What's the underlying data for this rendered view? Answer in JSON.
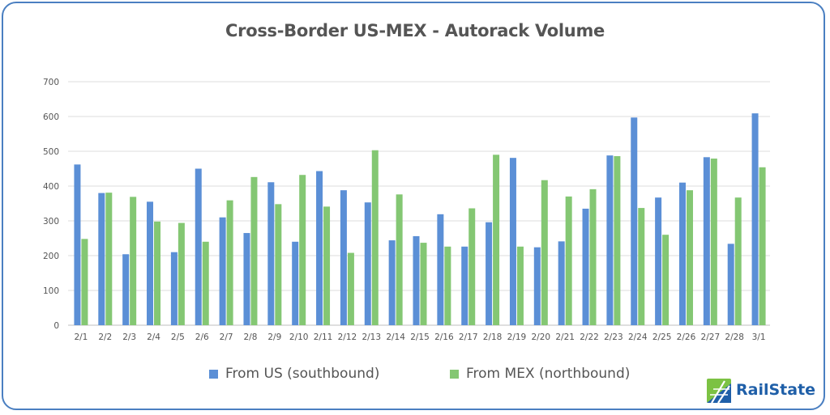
{
  "chart_data": {
    "type": "bar",
    "title": "Cross-Border US-MEX - Autorack Volume",
    "xlabel": "",
    "ylabel": "",
    "ylim": [
      0,
      700
    ],
    "yticks": [
      0,
      100,
      200,
      300,
      400,
      500,
      600,
      700
    ],
    "grid": true,
    "legend_position": "bottom",
    "categories": [
      "2/1",
      "2/2",
      "2/3",
      "2/4",
      "2/5",
      "2/6",
      "2/7",
      "2/8",
      "2/9",
      "2/10",
      "2/11",
      "2/12",
      "2/13",
      "2/14",
      "2/15",
      "2/16",
      "2/17",
      "2/18",
      "2/19",
      "2/20",
      "2/21",
      "2/22",
      "2/23",
      "2/24",
      "2/25",
      "2/26",
      "2/27",
      "2/28",
      "3/1"
    ],
    "series": [
      {
        "name": "From US (southbound)",
        "color": "#5b8fd6",
        "values": [
          462,
          380,
          204,
          355,
          210,
          450,
          310,
          265,
          411,
          240,
          443,
          388,
          353,
          244,
          256,
          319,
          226,
          296,
          481,
          224,
          241,
          335,
          488,
          597,
          367,
          410,
          483,
          234,
          609
        ]
      },
      {
        "name": "From MEX (northbound)",
        "color": "#84c773",
        "values": [
          248,
          381,
          369,
          298,
          294,
          240,
          359,
          426,
          348,
          432,
          341,
          208,
          503,
          376,
          237,
          226,
          336,
          490,
          226,
          417,
          370,
          391,
          486,
          337,
          260,
          388,
          479,
          367,
          454
        ]
      }
    ]
  },
  "logo": {
    "text": "RailState",
    "mark_colors": [
      "#7cc243",
      "#1f5fa8"
    ]
  }
}
